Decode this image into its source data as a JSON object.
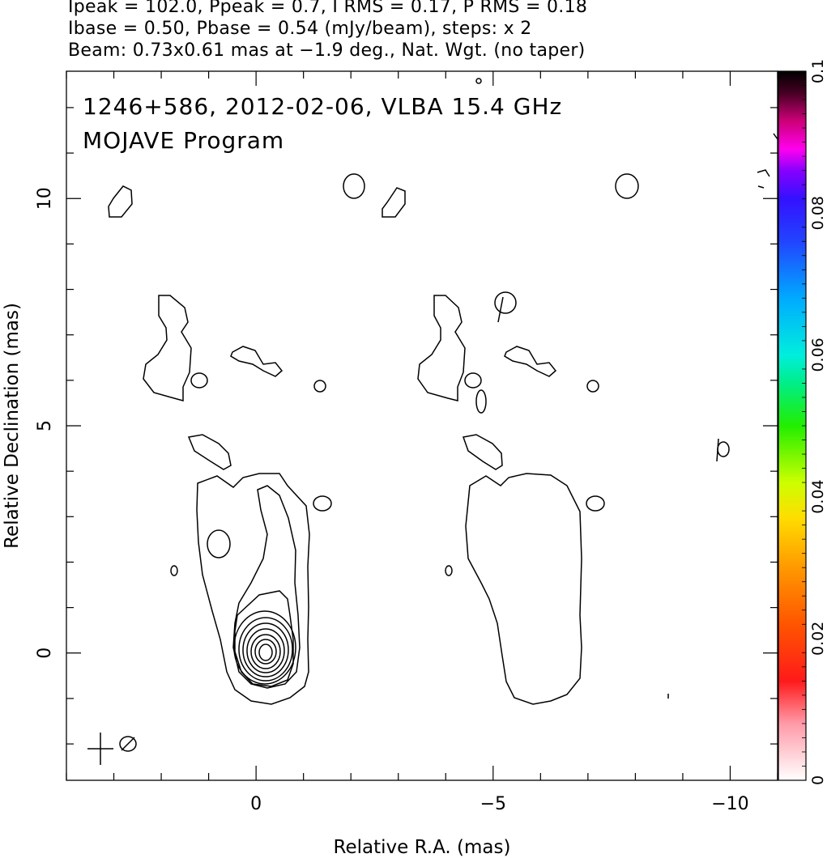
{
  "header": {
    "line1": "Ipeak = 102.0, Ppeak = 0.7, I RMS = 0.17, P RMS = 0.18",
    "line2": "Ibase = 0.50, Pbase = 0.54 (mJy/beam), steps: x 2",
    "line3": "Beam: 0.73x0.61 mas at −1.9 deg., Nat. Wgt. (no taper)"
  },
  "panel": {
    "title": "1246+586, 2012-02-06, VLBA 15.4 GHz",
    "subtitle": "MOJAVE Program"
  },
  "chart_data": {
    "type": "contour",
    "xlabel": "Relative R.A. (mas)",
    "ylabel": "Relative Declination (mas)",
    "xlim": [
      4.0,
      -11.0
    ],
    "ylim": [
      -2.8,
      12.8
    ],
    "x_ticks": [
      {
        "value": 0,
        "label": "0"
      },
      {
        "value": -5,
        "label": "−5"
      },
      {
        "value": -10,
        "label": "−10"
      }
    ],
    "y_ticks": [
      {
        "value": 0,
        "label": "0"
      },
      {
        "value": 5,
        "label": "5"
      },
      {
        "value": 10,
        "label": "10"
      }
    ],
    "beam": {
      "major_mas": 0.73,
      "minor_mas": 0.61,
      "pa_deg": -1.9
    },
    "core": {
      "x": 0,
      "y": 0,
      "peak_mJy_per_beam": 102.0
    },
    "total_intensity_base_mJy_per_beam": 0.5,
    "polarization_base_mJy_per_beam": 0.54,
    "contour_step_factor": 2,
    "colorbar": {
      "min": 0,
      "max": 0.1,
      "tick_labels": [
        "0",
        "0.02",
        "0.04",
        "0.06",
        "0.08",
        "0.1"
      ],
      "tick_values": [
        0,
        0.02,
        0.04,
        0.06,
        0.08,
        0.1
      ]
    }
  }
}
